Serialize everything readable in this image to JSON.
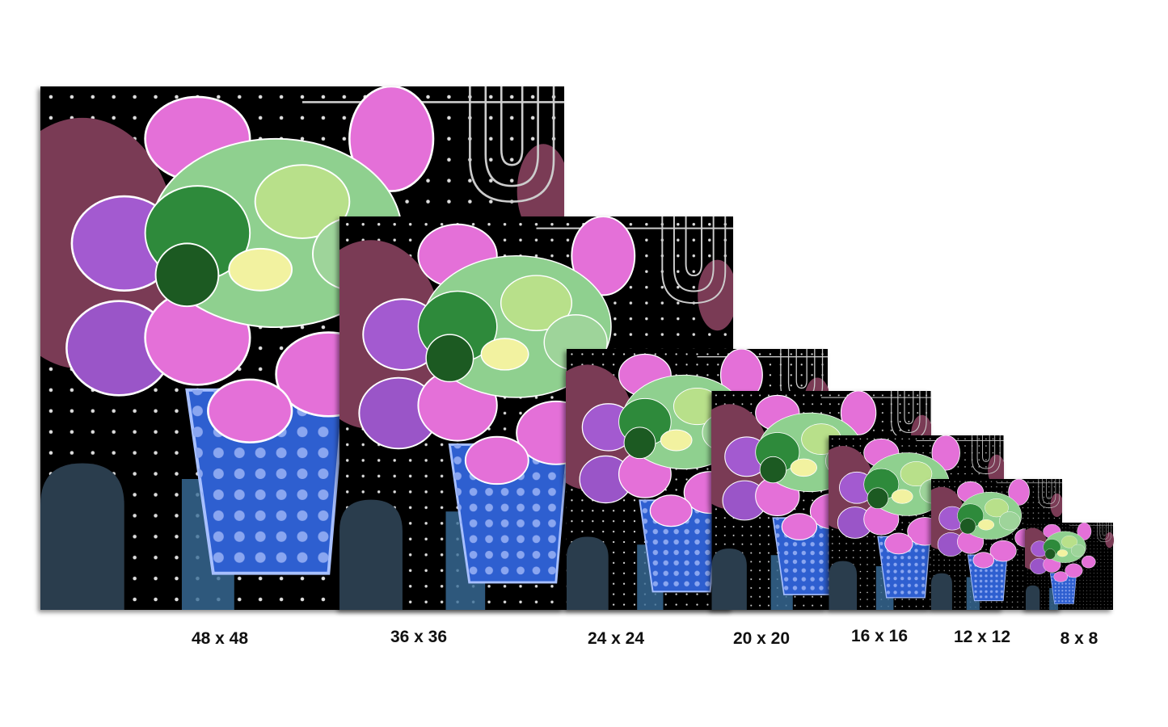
{
  "sizes": [
    "48 x 48",
    "36 x 36",
    "24 x 24",
    "20 x 20",
    "16 x 16",
    "12 x 12",
    "8 x 8"
  ]
}
